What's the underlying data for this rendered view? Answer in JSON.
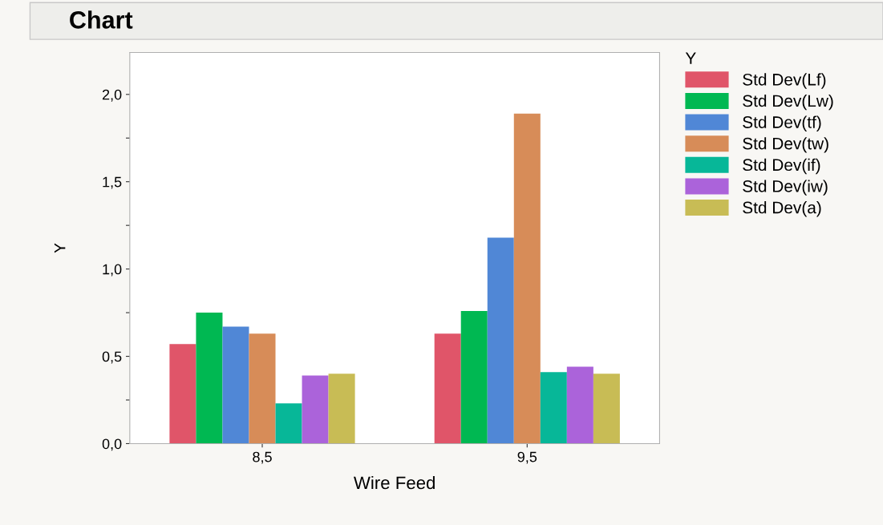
{
  "chart_data": {
    "type": "bar",
    "title": "Chart",
    "xlabel": "Wire Feed",
    "ylabel": "Y",
    "legend_title": "Y",
    "legend": "right",
    "categories": [
      "8,5",
      "9,5"
    ],
    "series": [
      {
        "name": "Std Dev(Lf)",
        "color": "#e05569",
        "values": [
          0.57,
          0.63
        ]
      },
      {
        "name": "Std Dev(Lw)",
        "color": "#00b852",
        "values": [
          0.75,
          0.76
        ]
      },
      {
        "name": "Std Dev(tf)",
        "color": "#5087d6",
        "values": [
          0.67,
          1.18
        ]
      },
      {
        "name": "Std Dev(tw)",
        "color": "#d78c58",
        "values": [
          0.63,
          1.89
        ]
      },
      {
        "name": "Std Dev(if)",
        "color": "#07b798",
        "values": [
          0.23,
          0.41
        ]
      },
      {
        "name": "Std Dev(iw)",
        "color": "#ab63da",
        "values": [
          0.39,
          0.44
        ]
      },
      {
        "name": "Std Dev(a)",
        "color": "#c8bc55",
        "values": [
          0.4,
          0.4
        ]
      }
    ],
    "ylim": [
      0,
      2.24
    ],
    "yticks": [
      {
        "value": 0,
        "label": "0,0"
      },
      {
        "value": 0.25,
        "label": null
      },
      {
        "value": 0.5,
        "label": "0,5"
      },
      {
        "value": 0.75,
        "label": null
      },
      {
        "value": 1.0,
        "label": "1,0"
      },
      {
        "value": 1.25,
        "label": null
      },
      {
        "value": 1.5,
        "label": "1,5"
      },
      {
        "value": 1.75,
        "label": null
      },
      {
        "value": 2.0,
        "label": "2,0"
      }
    ],
    "grid": false
  }
}
